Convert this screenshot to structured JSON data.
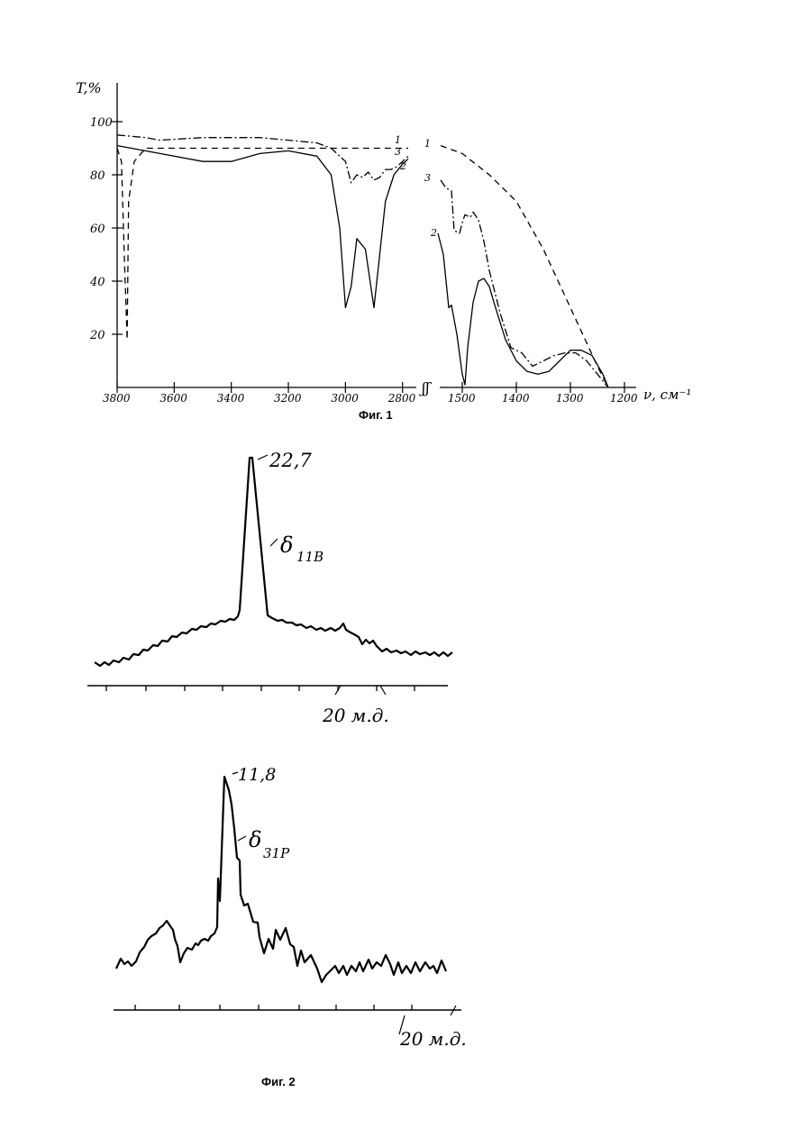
{
  "figure1": {
    "caption": "Фиг. 1",
    "ylabel": "T,%",
    "xlabel": "ν, см⁻¹",
    "yticks": [
      "100",
      "80",
      "60",
      "40",
      "20"
    ],
    "xticks_left": [
      "3800",
      "3600",
      "3400",
      "3200",
      "3000",
      "2800"
    ],
    "xticks_right": [
      "1500",
      "1400",
      "1300",
      "1200"
    ],
    "break_mark": "ʃʃ",
    "curve_labels": {
      "c1": "1",
      "c2": "2",
      "c3": "3"
    }
  },
  "figure2": {
    "caption": "Фиг. 2",
    "spectrum_b": {
      "peak_value": "22,7",
      "peak_label": "δ",
      "peak_sub": "11B",
      "scale_label": "20 м.д."
    },
    "spectrum_p": {
      "peak_value": "11,8",
      "peak_label": "δ",
      "peak_sub": "31P",
      "scale_label": "20 м.д."
    }
  },
  "chart_data": [
    {
      "type": "line",
      "title": "",
      "ylabel": "T,%",
      "xlabel": "ν, см⁻¹",
      "ylim": [
        0,
        100
      ],
      "x_axis_break": [
        2750,
        1560
      ],
      "xlim_left": [
        3800,
        2750
      ],
      "xlim_right": [
        1560,
        1200
      ],
      "series": [
        {
          "name": "1",
          "style": "dashed",
          "left": {
            "x": [
              3800,
              3785,
              3775,
              3765,
              3760,
              3740,
              3700,
              3600,
              3400,
              3200,
              3000,
              2800,
              2780
            ],
            "y": [
              90,
              85,
              50,
              18,
              70,
              85,
              90,
              90,
              90,
              90,
              90,
              90,
              90
            ]
          },
          "right": {
            "x": [
              1540,
              1500,
              1450,
              1400,
              1350,
              1300,
              1250,
              1230
            ],
            "y": [
              91,
              88,
              80,
              70,
              52,
              30,
              8,
              0
            ]
          }
        },
        {
          "name": "2",
          "style": "solid",
          "left": {
            "x": [
              3800,
              3750,
              3650,
              3500,
              3400,
              3300,
              3200,
              3100,
              3050,
              3020,
              3000,
              2980,
              2960,
              2930,
              2900,
              2880,
              2860,
              2830,
              2800,
              2780
            ],
            "y": [
              91,
              90,
              88,
              85,
              85,
              88,
              89,
              87,
              80,
              60,
              30,
              38,
              56,
              52,
              30,
              50,
              70,
              80,
              84,
              86
            ]
          },
          "right": {
            "x": [
              1545,
              1535,
              1525,
              1520,
              1510,
              1500,
              1495,
              1490,
              1480,
              1470,
              1460,
              1450,
              1440,
              1420,
              1400,
              1380,
              1360,
              1340,
              1320,
              1300,
              1280,
              1260,
              1240,
              1230
            ],
            "y": [
              58,
              50,
              30,
              31,
              20,
              5,
              1,
              15,
              32,
              40,
              41,
              38,
              31,
              18,
              10,
              6,
              5,
              6,
              10,
              14,
              14,
              12,
              5,
              0
            ]
          }
        },
        {
          "name": "3",
          "style": "dash-dot",
          "left": {
            "x": [
              3800,
              3700,
              3650,
              3500,
              3400,
              3300,
              3200,
              3100,
              3050,
              3000,
              2980,
              2960,
              2940,
              2920,
              2900,
              2880,
              2860,
              2840,
              2820,
              2800,
              2780
            ],
            "y": [
              95,
              94,
              93,
              94,
              94,
              94,
              93,
              92,
              90,
              85,
              77,
              80,
              79,
              81,
              78,
              79,
              82,
              82,
              83,
              85,
              87
            ]
          },
          "right": {
            "x": [
              1540,
              1530,
              1520,
              1515,
              1505,
              1500,
              1495,
              1485,
              1480,
              1470,
              1460,
              1450,
              1430,
              1410,
              1390,
              1370,
              1350,
              1330,
              1310,
              1290,
              1270,
              1250,
              1230
            ],
            "y": [
              78,
              75,
              74,
              59,
              58,
              62,
              65,
              64,
              66,
              63,
              55,
              44,
              28,
              15,
              13,
              8,
              10,
              12,
              13,
              13,
              10,
              5,
              0
            ]
          }
        }
      ]
    },
    {
      "type": "line",
      "title": "",
      "xlabel": "",
      "ylabel": "",
      "peak_label": "22,7",
      "scale_bar_label": "20 м.д.",
      "series": [
        {
          "shape": "single broad baseline hump with one sharp central peak at 22,7"
        }
      ]
    },
    {
      "type": "line",
      "title": "",
      "xlabel": "",
      "ylabel": "",
      "peak_label": "11,8",
      "scale_bar_label": "20 м.д.",
      "series": [
        {
          "shape": "noisy baseline with side bump and one sharp peak at 11,8"
        }
      ]
    }
  ]
}
